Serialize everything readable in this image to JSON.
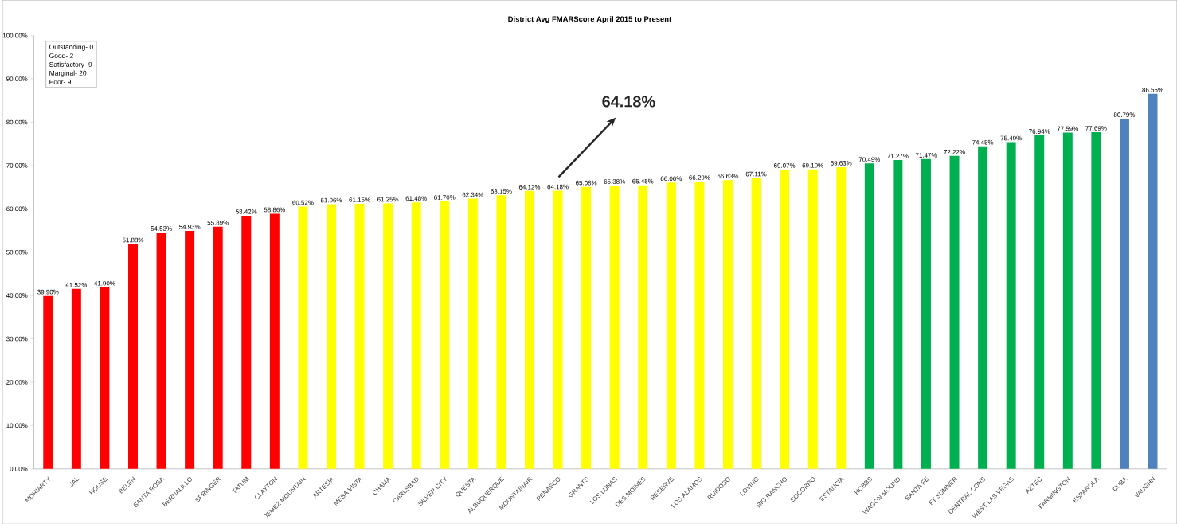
{
  "chart_data": {
    "type": "bar",
    "title": "District Avg FMARScore April 2015 to Present",
    "categories": [
      "MORIARTY",
      "JAL",
      "HOUSE",
      "BELEN",
      "SANTA ROSA",
      "BERNALILLO",
      "SPRINGER",
      "TATUM",
      "CLAYTON",
      "JEMEZ MOUNTAIN",
      "ARTESIA",
      "MESA VISTA",
      "CHAMA",
      "CARLSBAD",
      "SILVER CITY",
      "QUESTA",
      "ALBUQUERQUE",
      "MOUNTAINAIR",
      "PENASCO",
      "GRANTS",
      "LOS LUNAS",
      "DES MOINES",
      "RESERVE",
      "LOS ALAMOS",
      "RUIDOSO",
      "LOVING",
      "RIO RANCHO",
      "SOCORRO",
      "ESTANCIA",
      "HOBBS",
      "WAGON MOUND",
      "SANTA FE",
      "FT SUMNER",
      "CENTRAL CONS",
      "WEST LAS VEGAS",
      "AZTEC",
      "FARMINGTON",
      "ESPANOLA",
      "CUBA",
      "VAUGHN"
    ],
    "values": [
      39.9,
      41.52,
      41.9,
      51.88,
      54.53,
      54.93,
      55.89,
      58.42,
      58.86,
      60.52,
      61.06,
      61.15,
      61.25,
      61.48,
      61.7,
      62.34,
      63.15,
      64.12,
      64.18,
      65.08,
      65.38,
      65.45,
      66.06,
      66.29,
      66.63,
      67.11,
      69.07,
      69.1,
      69.63,
      70.49,
      71.27,
      71.47,
      72.22,
      74.45,
      75.4,
      76.94,
      77.59,
      77.69,
      80.79,
      86.55
    ],
    "value_labels": [
      "39.90%",
      "41.52%",
      "41.90%",
      "51.88%",
      "54.53%",
      "54.93%",
      "55.89%",
      "58.42%",
      "58.86%",
      "60.52%",
      "61.06%",
      "61.15%",
      "61.25%",
      "61.48%",
      "61.70%",
      "62.34%",
      "63.15%",
      "64.12%",
      "64.18%",
      "65.08%",
      "65.38%",
      "65.45%",
      "66.06%",
      "66.29%",
      "66.63%",
      "67.11%",
      "69.07%",
      "69.10%",
      "69.63%",
      "70.49%",
      "71.27%",
      "71.47%",
      "72.22%",
      "74.45%",
      "75.40%",
      "76.94%",
      "77.59%",
      "77.69%",
      "80.79%",
      "86.55%"
    ],
    "colors": [
      "#ff0000",
      "#ff0000",
      "#ff0000",
      "#ff0000",
      "#ff0000",
      "#ff0000",
      "#ff0000",
      "#ff0000",
      "#ff0000",
      "#ffff00",
      "#ffff00",
      "#ffff00",
      "#ffff00",
      "#ffff00",
      "#ffff00",
      "#ffff00",
      "#ffff00",
      "#ffff00",
      "#ffff00",
      "#ffff00",
      "#ffff00",
      "#ffff00",
      "#ffff00",
      "#ffff00",
      "#ffff00",
      "#ffff00",
      "#ffff00",
      "#ffff00",
      "#ffff00",
      "#00b050",
      "#00b050",
      "#00b050",
      "#00b050",
      "#00b050",
      "#00b050",
      "#00b050",
      "#00b050",
      "#00b050",
      "#4f81bd",
      "#4f81bd"
    ],
    "ylim": [
      0,
      100
    ],
    "yticks": [
      {
        "value": 0,
        "label": "0.00%"
      },
      {
        "value": 10,
        "label": "10.00%"
      },
      {
        "value": 20,
        "label": "20.00%"
      },
      {
        "value": 30,
        "label": "30.00%"
      },
      {
        "value": 40,
        "label": "40.00%"
      },
      {
        "value": 50,
        "label": "50.00%"
      },
      {
        "value": 60,
        "label": "60.00%"
      },
      {
        "value": 70,
        "label": "70.00%"
      },
      {
        "value": 80,
        "label": "80.00%"
      },
      {
        "value": 90,
        "label": "90.00%"
      },
      {
        "value": 100,
        "label": "100.00%"
      }
    ],
    "grid": false,
    "annotations": [
      "Outstanding- 0",
      "Good- 2",
      "Satisfactory- 9",
      "Marginal- 20",
      "Poor- 9",
      "64.18%"
    ]
  }
}
